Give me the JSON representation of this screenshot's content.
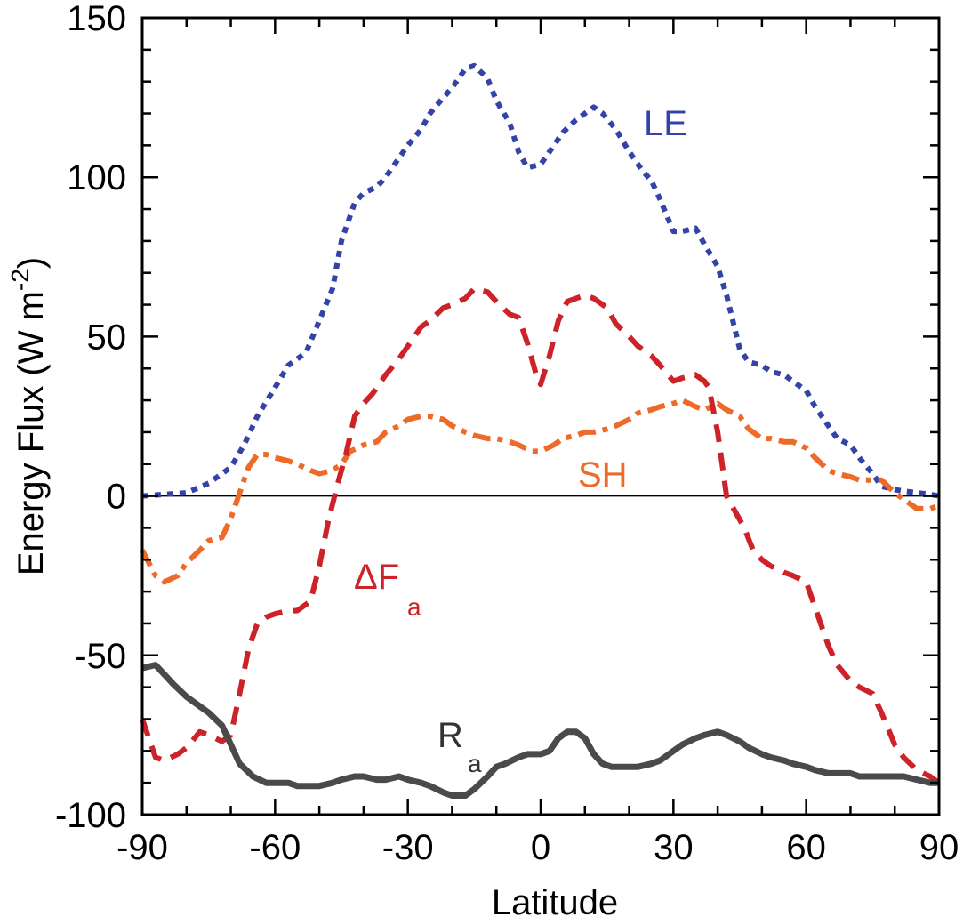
{
  "chart_data": {
    "type": "line",
    "xlabel": "Latitude",
    "ylabel": "Energy Flux (W m",
    "ylabel_sup": "-2",
    "ylabel_close": ")",
    "xlim": [
      -90,
      90
    ],
    "ylim": [
      -100,
      150
    ],
    "xticks": [
      -90,
      -60,
      -30,
      0,
      30,
      60,
      90
    ],
    "yticks": [
      -100,
      -50,
      0,
      50,
      100,
      150
    ],
    "x_minor_step": 10,
    "y_minor_step": 10,
    "zero_line": true,
    "series": [
      {
        "name": "LE",
        "color": "#3344a6",
        "style": "dotted",
        "x": [
          -90,
          -85,
          -80,
          -75,
          -70,
          -67,
          -64,
          -60,
          -57,
          -53,
          -50,
          -47,
          -45,
          -42,
          -40,
          -37,
          -35,
          -32,
          -30,
          -27,
          -25,
          -22,
          -20,
          -17,
          -15,
          -12,
          -10,
          -7,
          -5,
          -3,
          0,
          3,
          5,
          8,
          10,
          12,
          14,
          17,
          20,
          23,
          25,
          27,
          30,
          32,
          35,
          37,
          40,
          42,
          45,
          47,
          50,
          52,
          55,
          57,
          60,
          62,
          65,
          67,
          70,
          72,
          75,
          77,
          80,
          82,
          85,
          88,
          90
        ],
        "y": [
          0,
          0.5,
          1,
          4,
          9,
          16,
          25,
          34,
          41,
          45,
          55,
          65,
          80,
          92,
          95,
          97,
          100,
          106,
          110,
          115,
          120,
          125,
          128,
          134,
          135,
          131,
          124,
          117,
          108,
          103,
          104,
          110,
          114,
          118,
          120,
          122,
          120,
          115,
          108,
          102,
          99,
          93,
          83,
          83,
          84,
          79,
          72,
          63,
          46,
          42,
          41,
          39,
          38,
          36,
          33,
          28,
          22,
          18,
          16,
          12,
          7,
          3,
          2,
          1.5,
          1,
          0.5,
          0
        ],
        "label": "LE"
      },
      {
        "name": "SH",
        "color": "#ee6a28",
        "style": "dashdot",
        "x": [
          -90,
          -87,
          -85,
          -82,
          -80,
          -77,
          -75,
          -72,
          -70,
          -68,
          -66,
          -64,
          -62,
          -60,
          -57,
          -55,
          -52,
          -50,
          -47,
          -45,
          -43,
          -40,
          -37,
          -35,
          -32,
          -30,
          -27,
          -25,
          -22,
          -20,
          -17,
          -15,
          -12,
          -10,
          -7,
          -5,
          -2,
          0,
          3,
          5,
          8,
          10,
          12,
          15,
          17,
          20,
          22,
          25,
          27,
          30,
          32,
          35,
          37,
          40,
          42,
          45,
          47,
          50,
          52,
          55,
          57,
          60,
          62,
          65,
          67,
          70,
          72,
          75,
          77,
          80,
          82,
          85,
          88,
          90
        ],
        "y": [
          -17,
          -25,
          -27,
          -25,
          -21,
          -17,
          -14,
          -13,
          -7,
          1,
          9,
          13,
          13,
          12,
          11,
          10,
          8,
          7,
          8,
          10,
          14,
          16,
          17,
          20,
          22,
          24,
          25,
          25,
          24,
          22,
          20,
          19,
          18,
          18,
          17,
          16,
          14,
          14,
          16,
          18,
          19,
          20,
          20,
          21,
          22,
          24,
          26,
          27,
          28,
          29,
          30,
          28,
          27,
          29,
          27,
          25,
          21,
          18,
          18,
          17,
          17,
          15,
          12,
          8,
          7,
          6,
          5,
          5,
          5,
          1,
          -1,
          -4,
          -4,
          -3
        ],
        "label": "SH"
      },
      {
        "name": "ΔFa",
        "color": "#cc2228",
        "style": "dashed",
        "x": [
          -90,
          -87,
          -85,
          -82,
          -80,
          -77,
          -75,
          -72,
          -70,
          -68,
          -66,
          -64,
          -62,
          -60,
          -57,
          -55,
          -52,
          -50,
          -48,
          -46,
          -44,
          -42,
          -40,
          -38,
          -35,
          -32,
          -30,
          -27,
          -25,
          -22,
          -20,
          -17,
          -15,
          -12,
          -10,
          -7,
          -5,
          -3,
          -1,
          0,
          2,
          4,
          6,
          8,
          10,
          12,
          15,
          17,
          20,
          22,
          25,
          27,
          30,
          32,
          35,
          37,
          38,
          40,
          42,
          44,
          46,
          48,
          50,
          52,
          55,
          57,
          60,
          62,
          65,
          67,
          70,
          72,
          75,
          77,
          80,
          82,
          85,
          88,
          90
        ],
        "y": [
          -70,
          -82,
          -83,
          -81,
          -79,
          -74,
          -75,
          -77,
          -75,
          -62,
          -48,
          -40,
          -38,
          -37,
          -36,
          -36,
          -33,
          -22,
          -8,
          3,
          13,
          25,
          29,
          32,
          38,
          43,
          47,
          53,
          55,
          59,
          60,
          62,
          65,
          64,
          61,
          57,
          56,
          48,
          38,
          35,
          44,
          55,
          61,
          62,
          63,
          62,
          59,
          54,
          50,
          47,
          44,
          41,
          36,
          37,
          38,
          36,
          34,
          20,
          0,
          -5,
          -10,
          -17,
          -20,
          -22,
          -24,
          -25,
          -27,
          -35,
          -47,
          -53,
          -58,
          -60,
          -62,
          -68,
          -78,
          -82,
          -86,
          -88,
          -90
        ],
        "label": "ΔF",
        "label_sub": "a"
      },
      {
        "name": "Ra",
        "color": "#4a4a4a",
        "style": "solid",
        "x": [
          -90,
          -87,
          -85,
          -83,
          -80,
          -77,
          -75,
          -72,
          -70,
          -68,
          -65,
          -62,
          -60,
          -57,
          -55,
          -52,
          -50,
          -47,
          -45,
          -42,
          -40,
          -37,
          -35,
          -32,
          -30,
          -27,
          -25,
          -22,
          -20,
          -17,
          -15,
          -12,
          -10,
          -8,
          -5,
          -3,
          0,
          2,
          4,
          6,
          8,
          10,
          12,
          14,
          16,
          18,
          20,
          22,
          25,
          27,
          30,
          32,
          35,
          37,
          40,
          42,
          45,
          47,
          50,
          52,
          55,
          57,
          60,
          62,
          65,
          67,
          70,
          72,
          75,
          77,
          80,
          82,
          85,
          88,
          90
        ],
        "y": [
          -54,
          -53,
          -56,
          -59,
          -63,
          -66,
          -68,
          -72,
          -78,
          -84,
          -88,
          -90,
          -90,
          -90,
          -91,
          -91,
          -91,
          -90,
          -89,
          -88,
          -88,
          -89,
          -89,
          -88,
          -89,
          -90,
          -91,
          -93,
          -94,
          -94,
          -92,
          -88,
          -85,
          -84,
          -82,
          -81,
          -81,
          -80,
          -76,
          -74,
          -74,
          -76,
          -81,
          -84,
          -85,
          -85,
          -85,
          -85,
          -84,
          -83,
          -80,
          -78,
          -76,
          -75,
          -74,
          -75,
          -77,
          -79,
          -81,
          -82,
          -83,
          -84,
          -85,
          -86,
          -87,
          -87,
          -87,
          -88,
          -88,
          -88,
          -88,
          -88,
          -89,
          -90,
          -90
        ],
        "label": "R",
        "label_sub": "a"
      }
    ]
  }
}
